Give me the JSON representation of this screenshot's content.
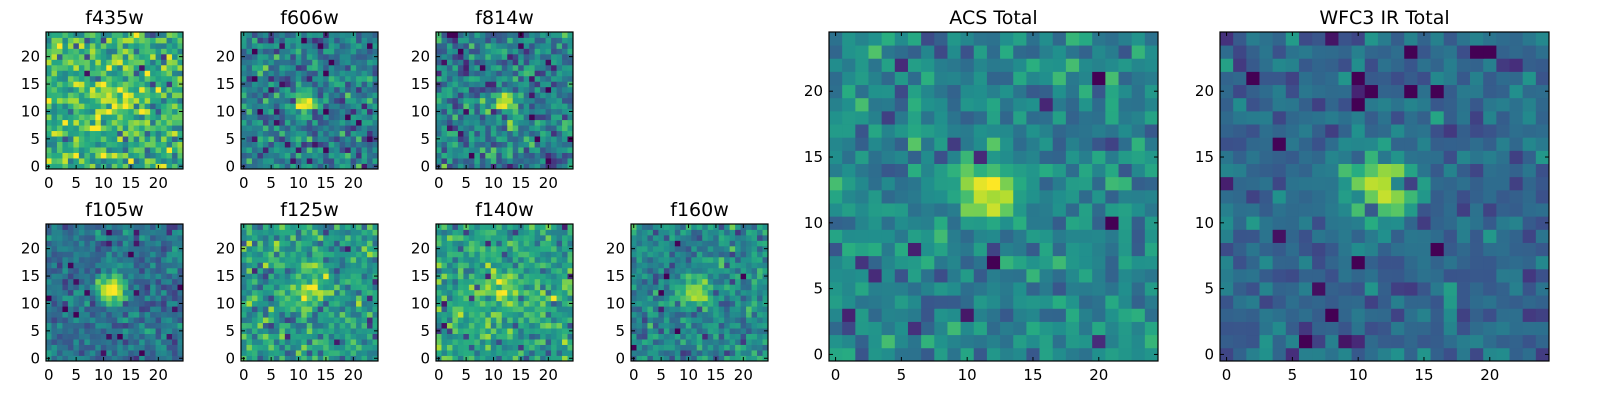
{
  "chart_data": [
    {
      "type": "heatmap",
      "title": "f435w",
      "xticks": [
        "0",
        "5",
        "10",
        "15",
        "20"
      ],
      "yticks": [
        "0",
        "5",
        "10",
        "15",
        "20"
      ],
      "xlim": [
        -0.5,
        24.5
      ],
      "ylim": [
        -0.5,
        24.5
      ],
      "colormap": "viridis",
      "source_center": [
        11.5,
        12.5
      ],
      "source_strength": 0.25,
      "source_sigma": 2.2,
      "background": 0.68,
      "noise": 0.16,
      "seed": 11
    },
    {
      "type": "heatmap",
      "title": "f606w",
      "xticks": [
        "0",
        "5",
        "10",
        "15",
        "20"
      ],
      "yticks": [
        "0",
        "5",
        "10",
        "15",
        "20"
      ],
      "xlim": [
        -0.5,
        24.5
      ],
      "ylim": [
        -0.5,
        24.5
      ],
      "colormap": "viridis",
      "source_center": [
        11.5,
        11.5
      ],
      "source_strength": 0.6,
      "source_sigma": 1.4,
      "background": 0.42,
      "noise": 0.14,
      "seed": 23
    },
    {
      "type": "heatmap",
      "title": "f814w",
      "xticks": [
        "0",
        "5",
        "10",
        "15",
        "20"
      ],
      "yticks": [
        "0",
        "5",
        "10",
        "15",
        "20"
      ],
      "xlim": [
        -0.5,
        24.5
      ],
      "ylim": [
        -0.5,
        24.5
      ],
      "colormap": "viridis",
      "source_center": [
        12,
        11.5
      ],
      "source_strength": 0.55,
      "source_sigma": 1.5,
      "background": 0.45,
      "noise": 0.15,
      "seed": 37
    },
    {
      "type": "heatmap",
      "title": "f105w",
      "xticks": [
        "0",
        "5",
        "10",
        "15",
        "20"
      ],
      "yticks": [
        "0",
        "5",
        "10",
        "15",
        "20"
      ],
      "xlim": [
        -0.5,
        24.5
      ],
      "ylim": [
        -0.5,
        24.5
      ],
      "colormap": "viridis",
      "source_center": [
        11.5,
        12.5
      ],
      "source_strength": 0.6,
      "source_sigma": 1.8,
      "background": 0.38,
      "noise": 0.1,
      "seed": 41
    },
    {
      "type": "heatmap",
      "title": "f125w",
      "xticks": [
        "0",
        "5",
        "10",
        "15",
        "20"
      ],
      "yticks": [
        "0",
        "5",
        "10",
        "15",
        "20"
      ],
      "xlim": [
        -0.5,
        24.5
      ],
      "ylim": [
        -0.5,
        24.5
      ],
      "colormap": "viridis",
      "source_center": [
        12,
        12.5
      ],
      "source_strength": 0.35,
      "source_sigma": 1.8,
      "background": 0.55,
      "noise": 0.14,
      "seed": 53
    },
    {
      "type": "heatmap",
      "title": "f140w",
      "xticks": [
        "0",
        "5",
        "10",
        "15",
        "20"
      ],
      "yticks": [
        "0",
        "5",
        "10",
        "15",
        "20"
      ],
      "xlim": [
        -0.5,
        24.5
      ],
      "ylim": [
        -0.5,
        24.5
      ],
      "colormap": "viridis",
      "source_center": [
        11.5,
        12.5
      ],
      "source_strength": 0.35,
      "source_sigma": 1.9,
      "background": 0.58,
      "noise": 0.12,
      "seed": 67
    },
    {
      "type": "heatmap",
      "title": "f160w",
      "xticks": [
        "0",
        "5",
        "10",
        "15",
        "20"
      ],
      "yticks": [
        "0",
        "5",
        "10",
        "15",
        "20"
      ],
      "xlim": [
        -0.5,
        24.5
      ],
      "ylim": [
        -0.5,
        24.5
      ],
      "colormap": "viridis",
      "source_center": [
        11.5,
        12.5
      ],
      "source_strength": 0.45,
      "source_sigma": 1.8,
      "background": 0.47,
      "noise": 0.12,
      "seed": 79
    },
    {
      "type": "heatmap",
      "title": "ACS Total",
      "xticks": [
        "0",
        "5",
        "10",
        "15",
        "20"
      ],
      "yticks": [
        "0",
        "5",
        "10",
        "15",
        "20"
      ],
      "xlim": [
        -0.5,
        24.5
      ],
      "ylim": [
        -0.5,
        24.5
      ],
      "colormap": "viridis",
      "source_center": [
        11.5,
        12.5
      ],
      "source_strength": 0.62,
      "source_sigma": 1.5,
      "background": 0.46,
      "noise": 0.1,
      "seed": 97
    },
    {
      "type": "heatmap",
      "title": "WFC3 IR Total",
      "xticks": [
        "0",
        "5",
        "10",
        "15",
        "20"
      ],
      "yticks": [
        "0",
        "5",
        "10",
        "15",
        "20"
      ],
      "xlim": [
        -0.5,
        24.5
      ],
      "ylim": [
        -0.5,
        24.5
      ],
      "colormap": "viridis",
      "source_center": [
        11.5,
        12.5
      ],
      "source_strength": 0.6,
      "source_sigma": 1.8,
      "background": 0.34,
      "noise": 0.08,
      "seed": 113
    }
  ]
}
